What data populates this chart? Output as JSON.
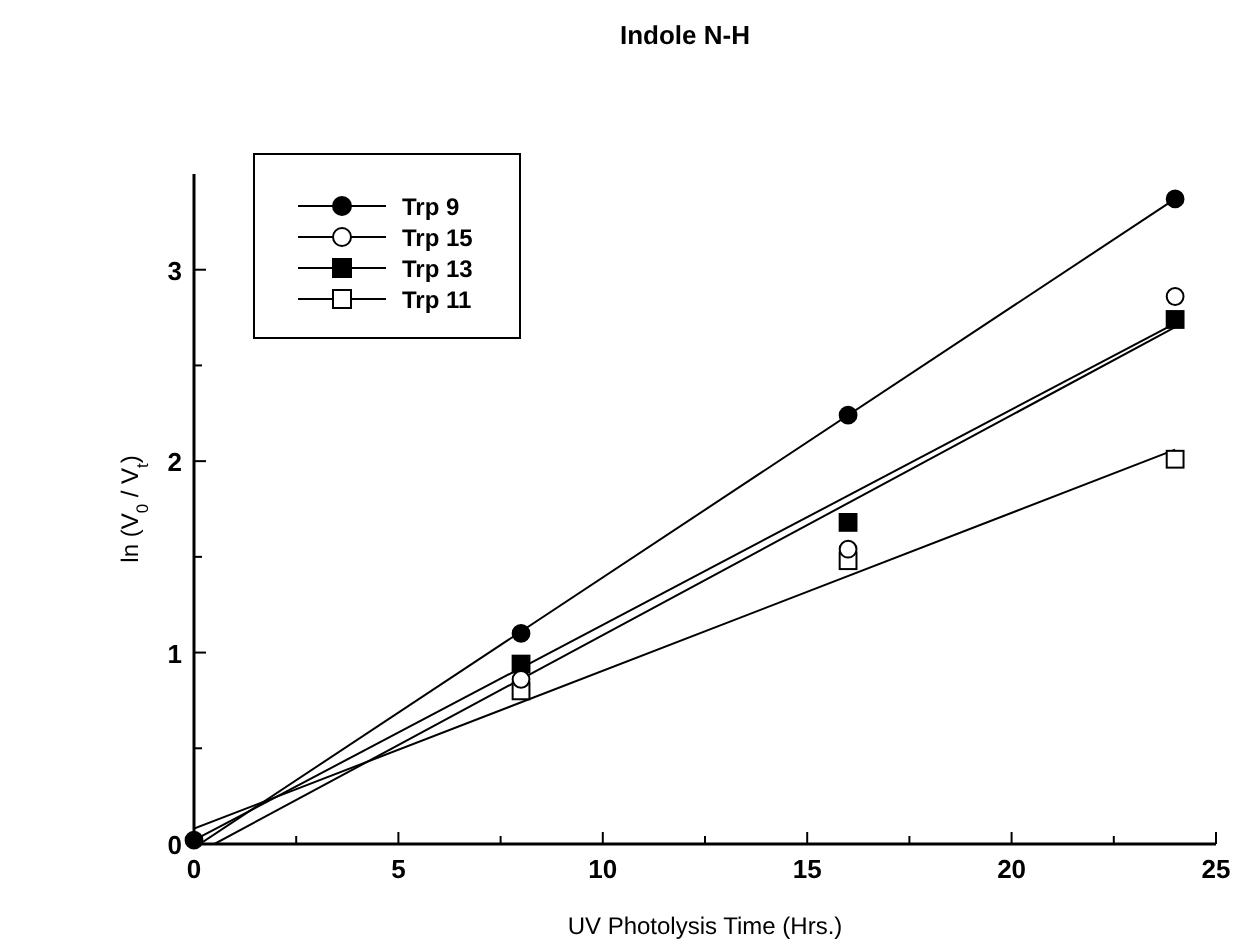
{
  "chart_data": {
    "type": "scatter",
    "title": "Indole N-H",
    "xlabel": "UV Photolysis Time (Hrs.)",
    "ylabel": "ln (V$_{0}$ / V$_{t}$)",
    "xlim": [
      0,
      25
    ],
    "xticks": [
      0,
      {
        "value": 2.5,
        "label": null
      },
      5,
      {
        "value": 7.5,
        "label": null
      },
      10,
      {
        "value": 12.5,
        "label": null
      },
      15,
      {
        "value": 17.5,
        "label": null
      },
      20,
      {
        "value": 22.5,
        "label": null
      },
      25
    ],
    "ylim": [
      0,
      3.5
    ],
    "yticks": [
      0,
      {
        "value": 0.5,
        "label": null
      },
      1,
      {
        "value": 1.5,
        "label": null
      },
      2,
      {
        "value": 2.5,
        "label": null
      },
      3
    ],
    "grid": false,
    "legend": "top left",
    "series": [
      {
        "name": "Trp 9",
        "color": "#000000",
        "marker": "circle",
        "x": [
          0,
          8,
          16,
          24
        ],
        "values": [
          0.02,
          1.1,
          2.24,
          3.37
        ]
      },
      {
        "name": "Trp 15",
        "color": "#ffffff",
        "marker": "circle",
        "x": [
          8,
          16,
          24
        ],
        "values": [
          0.86,
          1.54,
          2.86
        ]
      },
      {
        "name": "Trp 13",
        "color": "#000000",
        "marker": "square",
        "x": [
          8,
          16,
          24
        ],
        "values": [
          0.94,
          1.68,
          2.74
        ]
      },
      {
        "name": "Trp 11",
        "color": "#ffffff",
        "marker": "square",
        "x": [
          8,
          16,
          24
        ],
        "values": [
          0.8,
          1.48,
          2.01
        ]
      },
      {
        "type": "line",
        "color": "#000000",
        "marker": "none",
        "x": [
          0.14,
          24
        ],
        "values": [
          0,
          3.37
        ]
      },
      {
        "type": "line",
        "color": "#000000",
        "marker": "none",
        "x": [
          0.5,
          24
        ],
        "values": [
          0,
          2.7
        ]
      },
      {
        "type": "line",
        "color": "#000000",
        "marker": "none",
        "x": [
          0,
          24
        ],
        "values": [
          0.02,
          2.72
        ]
      },
      {
        "type": "line",
        "color": "#000000",
        "marker": "none",
        "x": [
          0,
          24
        ],
        "values": [
          0.08,
          2.06
        ]
      }
    ]
  }
}
